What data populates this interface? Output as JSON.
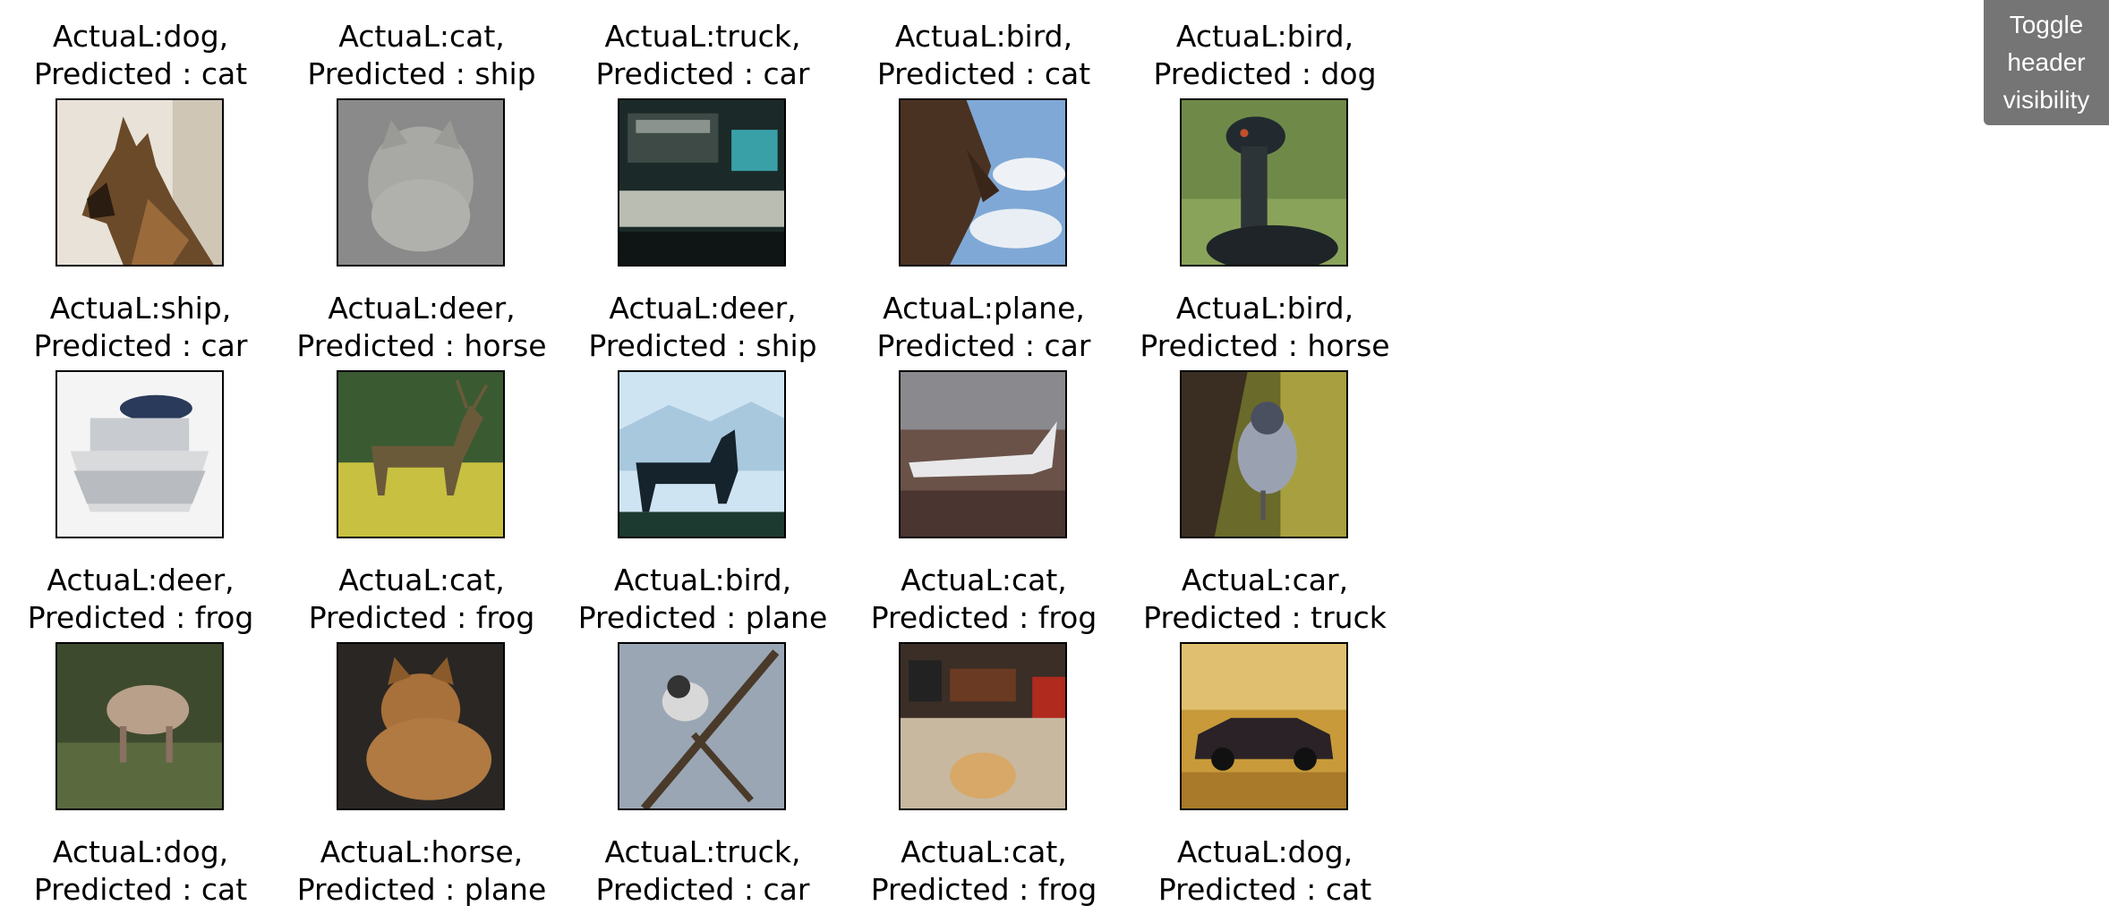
{
  "toggle": {
    "line1": "Toggle",
    "line2": "header",
    "line3": "visibility"
  },
  "items": [
    {
      "actual": "ActuaL:dog,",
      "pred": "Predicted : cat",
      "thumb": "dog"
    },
    {
      "actual": "ActuaL:cat,",
      "pred": "Predicted : ship",
      "thumb": "cat-gray"
    },
    {
      "actual": "ActuaL:truck,",
      "pred": "Predicted : car",
      "thumb": "truck"
    },
    {
      "actual": "ActuaL:bird,",
      "pred": "Predicted : cat",
      "thumb": "bird-sky"
    },
    {
      "actual": "ActuaL:bird,",
      "pred": "Predicted : dog",
      "thumb": "emu"
    },
    {
      "actual": "ActuaL:ship,",
      "pred": "Predicted : car",
      "thumb": "boat"
    },
    {
      "actual": "ActuaL:deer,",
      "pred": "Predicted : horse",
      "thumb": "deer-field"
    },
    {
      "actual": "ActuaL:deer,",
      "pred": "Predicted : ship",
      "thumb": "deer-sky"
    },
    {
      "actual": "ActuaL:plane,",
      "pred": "Predicted : car",
      "thumb": "plane"
    },
    {
      "actual": "ActuaL:bird,",
      "pred": "Predicted : horse",
      "thumb": "bird-perch"
    },
    {
      "actual": "ActuaL:deer,",
      "pred": "Predicted : frog",
      "thumb": "deer-grass"
    },
    {
      "actual": "ActuaL:cat,",
      "pred": "Predicted : frog",
      "thumb": "cat-brown"
    },
    {
      "actual": "ActuaL:bird,",
      "pred": "Predicted : plane",
      "thumb": "bird-branch"
    },
    {
      "actual": "ActuaL:cat,",
      "pred": "Predicted : frog",
      "thumb": "cat-room"
    },
    {
      "actual": "ActuaL:car,",
      "pred": "Predicted : truck",
      "thumb": "car-autumn"
    },
    {
      "actual": "ActuaL:dog,",
      "pred": "Predicted : cat",
      "thumb": ""
    },
    {
      "actual": "ActuaL:horse,",
      "pred": "Predicted : plane",
      "thumb": ""
    },
    {
      "actual": "ActuaL:truck,",
      "pred": "Predicted : car",
      "thumb": ""
    },
    {
      "actual": "ActuaL:cat,",
      "pred": "Predicted : frog",
      "thumb": ""
    },
    {
      "actual": "ActuaL:dog,",
      "pred": "Predicted : cat",
      "thumb": ""
    }
  ]
}
